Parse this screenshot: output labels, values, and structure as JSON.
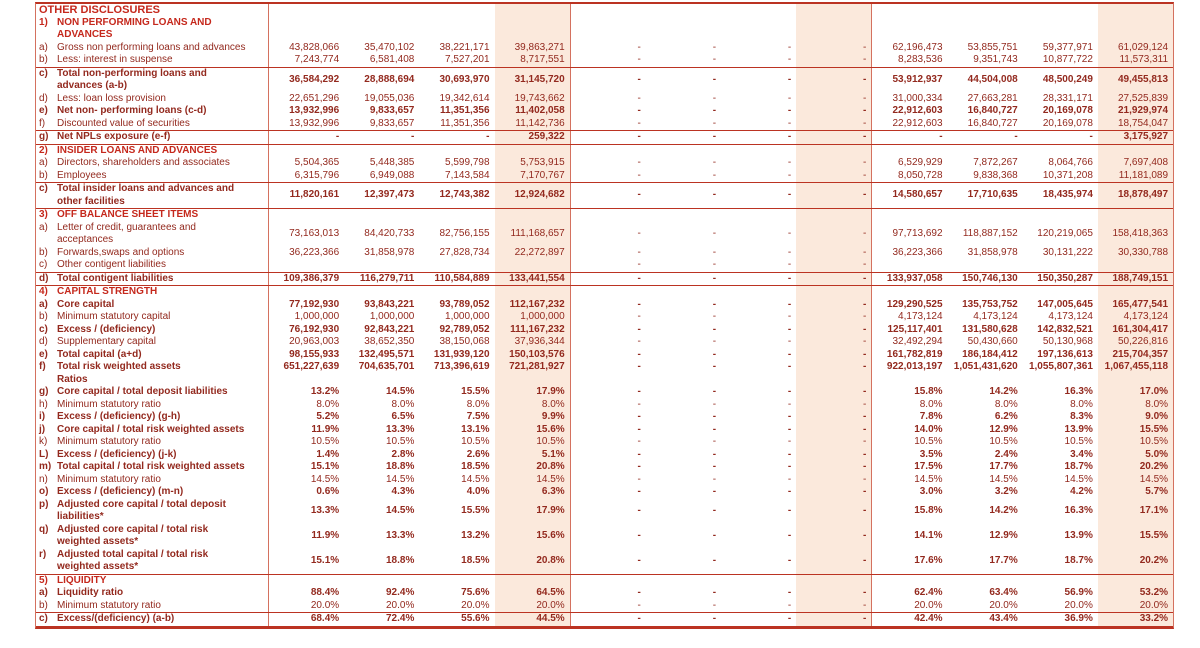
{
  "page": {
    "title": "OTHER DISCLOSURES"
  },
  "table": {
    "colors": {
      "heading": "#c5281c",
      "text": "#93291e",
      "line": "#bb3322",
      "vline": "#d4715f",
      "band": "#fbe9dc"
    },
    "column_count": 12,
    "highlight_columns": [
      3,
      7,
      11
    ],
    "group_divider_columns": [
      3,
      7
    ],
    "sections": [
      {
        "num": "1)",
        "heading": "NON PERFORMING LOANS AND ADVANCES",
        "rows": [
          {
            "letter": "a)",
            "label": "Gross  non performing loans and advances",
            "bold": false,
            "rule_top": false,
            "section_end": false,
            "values": [
              "43,828,066",
              "35,470,102",
              "38,221,171",
              "39,863,271",
              "-",
              "-",
              "-",
              "-",
              "62,196,473",
              "53,855,751",
              "59,377,971",
              "61,029,124"
            ]
          },
          {
            "letter": "b)",
            "label": "Less: interest in suspense",
            "bold": false,
            "rule_top": false,
            "section_end": false,
            "values": [
              "7,243,774",
              "6,581,408",
              "7,527,201",
              "8,717,551",
              "-",
              "-",
              "-",
              "-",
              "8,283,536",
              "9,351,743",
              "10,877,722",
              "11,573,311"
            ]
          },
          {
            "letter": "c)",
            "label": "Total  non-performing loans and advances (a-b)",
            "bold": true,
            "rule_top": true,
            "section_end": false,
            "values": [
              "36,584,292",
              "28,888,694",
              "30,693,970",
              "31,145,720",
              "-",
              "-",
              "-",
              "-",
              "53,912,937",
              "44,504,008",
              "48,500,249",
              "49,455,813"
            ]
          },
          {
            "letter": "d)",
            "label": "Less: loan loss provision",
            "bold": false,
            "rule_top": false,
            "section_end": false,
            "values": [
              "22,651,296",
              "19,055,036",
              "19,342,614",
              "19,743,662",
              "-",
              "-",
              "-",
              "-",
              "31,000,334",
              "27,663,281",
              "28,331,171",
              "27,525,839"
            ]
          },
          {
            "letter": "e)",
            "label": "Net non- performing loans (c-d)",
            "bold": true,
            "rule_top": false,
            "section_end": false,
            "values": [
              "13,932,996",
              "9,833,657",
              "11,351,356",
              "11,402,058",
              "-",
              "-",
              "-",
              "-",
              "22,912,603",
              "16,840,727",
              "20,169,078",
              "21,929,974"
            ]
          },
          {
            "letter": "f)",
            "label": "Discounted value of securities",
            "bold": false,
            "rule_top": false,
            "section_end": false,
            "values": [
              "13,932,996",
              "9,833,657",
              "11,351,356",
              "11,142,736",
              "-",
              "-",
              "-",
              "-",
              "22,912,603",
              "16,840,727",
              "20,169,078",
              "18,754,047"
            ]
          },
          {
            "letter": "g)",
            "label": "Net NPLs exposure (e-f)",
            "bold": true,
            "rule_top": true,
            "section_end": true,
            "values": [
              "-",
              "-",
              "-",
              "259,322",
              "-",
              "-",
              "-",
              "-",
              "-",
              "-",
              "-",
              "3,175,927"
            ]
          }
        ]
      },
      {
        "num": "2)",
        "heading": "INSIDER LOANS AND ADVANCES",
        "rows": [
          {
            "letter": "a)",
            "label": "Directors, shareholders and associates",
            "bold": false,
            "rule_top": false,
            "section_end": false,
            "values": [
              "5,504,365",
              "5,448,385",
              "5,599,798",
              "5,753,915",
              "-",
              "-",
              "-",
              "-",
              "6,529,929",
              "7,872,267",
              "8,064,766",
              "7,697,408"
            ]
          },
          {
            "letter": "b)",
            "label": "Employees",
            "bold": false,
            "rule_top": false,
            "section_end": false,
            "values": [
              "6,315,796",
              "6,949,088",
              "7,143,584",
              "7,170,767",
              "-",
              "-",
              "-",
              "-",
              "8,050,728",
              "9,838,368",
              "10,371,208",
              "11,181,089"
            ]
          },
          {
            "letter": "c)",
            "label": "Total insider loans and advances and other facilities",
            "bold": true,
            "rule_top": true,
            "section_end": true,
            "values": [
              "11,820,161",
              "12,397,473",
              "12,743,382",
              "12,924,682",
              "-",
              "-",
              "-",
              "-",
              "14,580,657",
              "17,710,635",
              "18,435,974",
              "18,878,497"
            ]
          }
        ]
      },
      {
        "num": "3)",
        "heading": "OFF BALANCE SHEET ITEMS",
        "rows": [
          {
            "letter": "a)",
            "label": "Letter of credit, guarantees and acceptances",
            "bold": false,
            "rule_top": false,
            "section_end": false,
            "values": [
              "73,163,013",
              "84,420,733",
              "82,756,155",
              "111,168,657",
              "-",
              "-",
              "-",
              "-",
              "97,713,692",
              "118,887,152",
              "120,219,065",
              "158,418,363"
            ]
          },
          {
            "letter": "b)",
            "label": "Forwards,swaps and options",
            "bold": false,
            "rule_top": false,
            "section_end": false,
            "values": [
              "36,223,366",
              "31,858,978",
              "27,828,734",
              "22,272,897",
              "-",
              "-",
              "-",
              "-",
              "36,223,366",
              "31,858,978",
              "30,131,222",
              "30,330,788"
            ]
          },
          {
            "letter": "c)",
            "label": "Other contigent liabilities",
            "bold": false,
            "rule_top": false,
            "section_end": false,
            "values": [
              "",
              "",
              "",
              "",
              "-",
              "-",
              "-",
              "-",
              "",
              "",
              "",
              ""
            ]
          },
          {
            "letter": "d)",
            "label": "Total contigent liabilities",
            "bold": true,
            "rule_top": true,
            "section_end": true,
            "values": [
              "109,386,379",
              "116,279,711",
              "110,584,889",
              "133,441,554",
              "-",
              "-",
              "-",
              "-",
              "133,937,058",
              "150,746,130",
              "150,350,287",
              "188,749,151"
            ]
          }
        ]
      },
      {
        "num": "4)",
        "heading": "CAPITAL STRENGTH",
        "rows": [
          {
            "letter": "a)",
            "label": "Core capital",
            "bold": true,
            "rule_top": false,
            "section_end": false,
            "values": [
              "77,192,930",
              "93,843,221",
              "93,789,052",
              "112,167,232",
              "-",
              "-",
              "-",
              "-",
              "129,290,525",
              "135,753,752",
              "147,005,645",
              "165,477,541"
            ]
          },
          {
            "letter": "b)",
            "label": "Minimum statutory capital",
            "bold": false,
            "rule_top": false,
            "section_end": false,
            "values": [
              "1,000,000",
              "1,000,000",
              "1,000,000",
              "1,000,000",
              "-",
              "-",
              "-",
              "-",
              "4,173,124",
              "4,173,124",
              "4,173,124",
              "4,173,124"
            ]
          },
          {
            "letter": "c)",
            "label": "Excess / (deficiency)",
            "bold": true,
            "rule_top": false,
            "section_end": false,
            "values": [
              "76,192,930",
              "92,843,221",
              "92,789,052",
              "111,167,232",
              "-",
              "-",
              "-",
              "-",
              "125,117,401",
              "131,580,628",
              "142,832,521",
              "161,304,417"
            ]
          },
          {
            "letter": "d)",
            "label": "Supplementary capital",
            "bold": false,
            "rule_top": false,
            "section_end": false,
            "values": [
              "20,963,003",
              "38,652,350",
              "38,150,068",
              "37,936,344",
              "-",
              "-",
              "-",
              "-",
              "32,492,294",
              "50,430,660",
              "50,130,968",
              "50,226,816"
            ]
          },
          {
            "letter": "e)",
            "label": "Total capital (a+d)",
            "bold": true,
            "rule_top": false,
            "section_end": false,
            "values": [
              "98,155,933",
              "132,495,571",
              "131,939,120",
              "150,103,576",
              "-",
              "-",
              "-",
              "-",
              "161,782,819",
              "186,184,412",
              "197,136,613",
              "215,704,357"
            ]
          },
          {
            "letter": "f)",
            "label": "Total risk weighted assets",
            "bold": true,
            "rule_top": false,
            "section_end": false,
            "values": [
              "651,227,639",
              "704,635,701",
              "713,396,619",
              "721,281,927",
              "-",
              "-",
              "-",
              "-",
              "922,013,197",
              "1,051,431,620",
              "1,055,807,361",
              "1,067,455,118"
            ]
          },
          {
            "subheading": "Ratios"
          },
          {
            "letter": "g)",
            "label": "Core capital / total deposit liabilities",
            "bold": true,
            "rule_top": false,
            "section_end": false,
            "values": [
              "13.2%",
              "14.5%",
              "15.5%",
              "17.9%",
              "-",
              "-",
              "-",
              "-",
              "15.8%",
              "14.2%",
              "16.3%",
              "17.0%"
            ]
          },
          {
            "letter": "h)",
            "label": "Minimum statutory ratio",
            "bold": false,
            "rule_top": false,
            "section_end": false,
            "values": [
              "8.0%",
              "8.0%",
              "8.0%",
              "8.0%",
              "-",
              "-",
              "-",
              "-",
              "8.0%",
              "8.0%",
              "8.0%",
              "8.0%"
            ]
          },
          {
            "letter": "i)",
            "label": "Excess / (deficiency) (g-h)",
            "bold": true,
            "rule_top": false,
            "section_end": false,
            "values": [
              "5.2%",
              "6.5%",
              "7.5%",
              "9.9%",
              "-",
              "-",
              "-",
              "-",
              "7.8%",
              "6.2%",
              "8.3%",
              "9.0%"
            ]
          },
          {
            "letter": "j)",
            "label": "Core capital / total risk weighted assets",
            "bold": true,
            "rule_top": false,
            "section_end": false,
            "values": [
              "11.9%",
              "13.3%",
              "13.1%",
              "15.6%",
              "-",
              "-",
              "-",
              "-",
              "14.0%",
              "12.9%",
              "13.9%",
              "15.5%"
            ]
          },
          {
            "letter": "k)",
            "label": "Minimum statutory ratio",
            "bold": false,
            "rule_top": false,
            "section_end": false,
            "values": [
              "10.5%",
              "10.5%",
              "10.5%",
              "10.5%",
              "-",
              "-",
              "-",
              "-",
              "10.5%",
              "10.5%",
              "10.5%",
              "10.5%"
            ]
          },
          {
            "letter": "L)",
            "label": "Excess / (deficiency) (j-k)",
            "bold": true,
            "rule_top": false,
            "section_end": false,
            "values": [
              "1.4%",
              "2.8%",
              "2.6%",
              "5.1%",
              "-",
              "-",
              "-",
              "-",
              "3.5%",
              "2.4%",
              "3.4%",
              "5.0%"
            ]
          },
          {
            "letter": "m)",
            "label": "Total capital / total risk weighted assets",
            "bold": true,
            "rule_top": false,
            "section_end": false,
            "values": [
              "15.1%",
              "18.8%",
              "18.5%",
              "20.8%",
              "-",
              "-",
              "-",
              "-",
              "17.5%",
              "17.7%",
              "18.7%",
              "20.2%"
            ]
          },
          {
            "letter": "n)",
            "label": "Minimum statutory ratio",
            "bold": false,
            "rule_top": false,
            "section_end": false,
            "values": [
              "14.5%",
              "14.5%",
              "14.5%",
              "14.5%",
              "-",
              "-",
              "-",
              "-",
              "14.5%",
              "14.5%",
              "14.5%",
              "14.5%"
            ]
          },
          {
            "letter": "o)",
            "label": "Excess / (deficiency) (m-n)",
            "bold": true,
            "rule_top": false,
            "section_end": false,
            "values": [
              "0.6%",
              "4.3%",
              "4.0%",
              "6.3%",
              "-",
              "-",
              "-",
              "-",
              "3.0%",
              "3.2%",
              "4.2%",
              "5.7%"
            ]
          },
          {
            "letter": "p)",
            "label": "Adjusted core capital / total deposit liabilities*",
            "bold": true,
            "rule_top": false,
            "section_end": false,
            "values": [
              "13.3%",
              "14.5%",
              "15.5%",
              "17.9%",
              "-",
              "-",
              "-",
              "-",
              "15.8%",
              "14.2%",
              "16.3%",
              "17.1%"
            ]
          },
          {
            "letter": "q)",
            "label": "Adjusted core capital / total risk weighted assets*",
            "bold": true,
            "rule_top": false,
            "section_end": false,
            "values": [
              "11.9%",
              "13.3%",
              "13.2%",
              "15.6%",
              "-",
              "-",
              "-",
              "-",
              "14.1%",
              "12.9%",
              "13.9%",
              "15.5%"
            ]
          },
          {
            "letter": "r)",
            "label": "Adjusted total capital / total risk weighted assets*",
            "bold": true,
            "rule_top": false,
            "section_end": true,
            "values": [
              "15.1%",
              "18.8%",
              "18.5%",
              "20.8%",
              "-",
              "-",
              "-",
              "-",
              "17.6%",
              "17.7%",
              "18.7%",
              "20.2%"
            ]
          }
        ]
      },
      {
        "num": "5)",
        "heading": "LIQUIDITY",
        "rows": [
          {
            "letter": "a)",
            "label": "Liquidity ratio",
            "bold": true,
            "rule_top": false,
            "section_end": false,
            "values": [
              "88.4%",
              "92.4%",
              "75.6%",
              "64.5%",
              "-",
              "-",
              "-",
              "-",
              "62.4%",
              "63.4%",
              "56.9%",
              "53.2%"
            ]
          },
          {
            "letter": "b)",
            "label": "Minimum statutory ratio",
            "bold": false,
            "rule_top": false,
            "section_end": false,
            "values": [
              "20.0%",
              "20.0%",
              "20.0%",
              "20.0%",
              "-",
              "-",
              "-",
              "-",
              "20.0%",
              "20.0%",
              "20.0%",
              "20.0%"
            ]
          },
          {
            "letter": "c)",
            "label": "Excess/(deficiency) (a-b)",
            "bold": true,
            "rule_top": true,
            "section_end": true,
            "values": [
              "68.4%",
              "72.4%",
              "55.6%",
              "44.5%",
              "-",
              "-",
              "-",
              "-",
              "42.4%",
              "43.4%",
              "36.9%",
              "33.2%"
            ]
          }
        ]
      }
    ]
  }
}
